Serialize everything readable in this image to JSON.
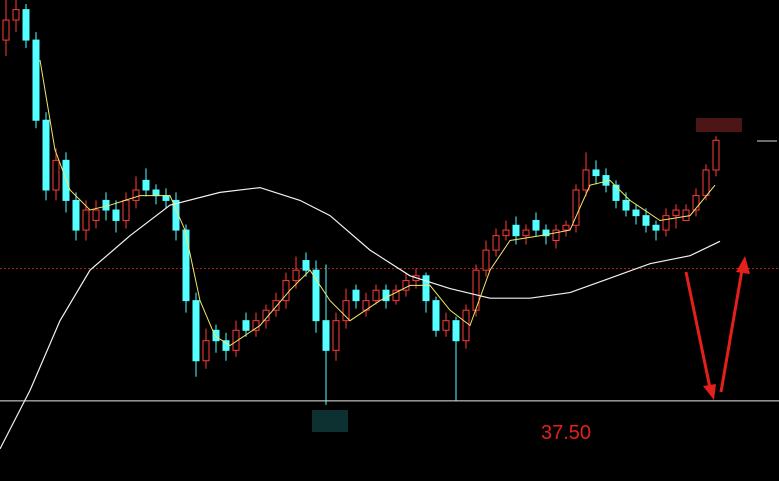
{
  "chart_data": {
    "type": "candlestick",
    "ylim": [
      36.5,
      42.5
    ],
    "up_color": "#ff3a3a",
    "down_color": "#54ffff",
    "open": [
      42.0,
      42.25,
      42.38,
      42.0,
      41.0,
      40.13,
      40.5,
      40.0,
      39.63,
      39.75,
      40.0,
      39.88,
      39.75,
      40.0,
      40.25,
      40.13,
      40.06,
      40.0,
      39.63,
      38.75,
      38.0,
      38.38,
      38.25,
      38.13,
      38.5,
      38.38,
      38.5,
      38.63,
      38.75,
      39.0,
      39.25,
      39.13,
      38.5,
      38.13,
      38.5,
      38.88,
      38.63,
      38.75,
      38.88,
      38.75,
      38.88,
      39.0,
      39.06,
      38.75,
      38.38,
      38.5,
      38.25,
      38.63,
      39.13,
      39.38,
      39.56,
      39.69,
      39.56,
      39.75,
      39.63,
      39.5,
      39.63,
      39.69,
      40.13,
      40.38,
      40.31,
      40.19,
      40.0,
      39.88,
      39.81,
      39.69,
      39.63,
      39.81,
      39.75,
      39.88,
      40.06,
      40.38
    ],
    "close": [
      42.25,
      42.38,
      42.0,
      41.0,
      40.13,
      40.5,
      40.0,
      39.63,
      39.88,
      39.88,
      39.88,
      39.75,
      40.0,
      40.13,
      40.13,
      40.06,
      40.0,
      39.63,
      38.75,
      38.0,
      38.25,
      38.25,
      38.13,
      38.38,
      38.38,
      38.5,
      38.63,
      38.75,
      39.0,
      39.13,
      39.13,
      38.5,
      38.13,
      38.5,
      38.75,
      38.75,
      38.75,
      38.88,
      38.75,
      38.88,
      39.0,
      39.06,
      38.75,
      38.38,
      38.5,
      38.25,
      38.63,
      39.13,
      39.38,
      39.56,
      39.63,
      39.56,
      39.63,
      39.63,
      39.56,
      39.63,
      39.69,
      40.13,
      40.38,
      40.31,
      40.19,
      40.0,
      39.88,
      39.81,
      39.69,
      39.63,
      39.81,
      39.88,
      39.88,
      40.06,
      40.38,
      40.75
    ],
    "high": [
      42.5,
      42.5,
      42.45,
      42.1,
      41.1,
      40.65,
      40.6,
      40.1,
      40.0,
      40.0,
      40.1,
      40.0,
      40.1,
      40.3,
      40.4,
      40.2,
      40.15,
      40.1,
      39.7,
      38.85,
      38.4,
      38.45,
      38.35,
      38.5,
      38.6,
      38.6,
      38.7,
      38.85,
      39.1,
      39.3,
      39.35,
      39.25,
      39.2,
      38.6,
      38.9,
      38.95,
      38.85,
      38.95,
      38.95,
      38.95,
      39.1,
      39.15,
      39.1,
      38.8,
      38.6,
      38.55,
      38.7,
      39.2,
      39.5,
      39.65,
      39.75,
      39.8,
      39.7,
      39.85,
      39.7,
      39.7,
      39.75,
      40.2,
      40.6,
      40.5,
      40.4,
      40.25,
      40.1,
      39.95,
      39.9,
      39.75,
      39.9,
      39.95,
      39.95,
      40.15,
      40.45,
      40.8
    ],
    "low": [
      41.8,
      42.1,
      41.9,
      40.9,
      40.0,
      40.0,
      39.85,
      39.5,
      39.5,
      39.65,
      39.75,
      39.6,
      39.65,
      39.9,
      40.05,
      39.95,
      39.9,
      39.5,
      38.6,
      37.8,
      37.9,
      38.1,
      38.0,
      38.05,
      38.3,
      38.3,
      38.4,
      38.55,
      38.65,
      38.9,
      39.05,
      38.35,
      37.45,
      38.0,
      38.4,
      38.65,
      38.55,
      38.7,
      38.65,
      38.7,
      38.8,
      38.9,
      38.6,
      38.3,
      38.3,
      37.5,
      38.15,
      38.55,
      39.05,
      39.3,
      39.5,
      39.45,
      39.45,
      39.55,
      39.45,
      39.4,
      39.55,
      39.6,
      40.05,
      40.2,
      40.1,
      39.9,
      39.8,
      39.7,
      39.6,
      39.5,
      39.55,
      39.65,
      39.8,
      39.8,
      40.0,
      40.3
    ],
    "short_ma": {
      "color": "#f5e66a",
      "x": [
        3.4,
        4.9,
        6.4,
        8.4,
        10.4,
        13.4,
        16.4,
        17.9,
        19.4,
        20.9,
        22.4,
        25.4,
        28.4,
        30.4,
        32.4,
        34.4,
        37.4,
        40.4,
        42.4,
        44.4,
        46.4,
        48.4,
        50.4,
        53.4,
        56.4,
        58.4,
        60.4,
        62.4,
        65.4,
        68.4,
        70.9
      ],
      "values": [
        41.75,
        40.63,
        40.13,
        39.88,
        39.94,
        40.06,
        40.06,
        39.63,
        38.75,
        38.31,
        38.19,
        38.44,
        38.88,
        39.13,
        38.75,
        38.5,
        38.75,
        38.94,
        38.94,
        38.63,
        38.44,
        39.13,
        39.5,
        39.56,
        39.63,
        40.19,
        40.25,
        40.0,
        39.75,
        39.81,
        40.19
      ]
    },
    "long_ma": {
      "color": "#f2f2f2",
      "x": [
        -0.6,
        2.4,
        5.4,
        8.4,
        12.4,
        16.4,
        21.4,
        25.4,
        29.4,
        32.4,
        36.4,
        40.4,
        44.4,
        48.4,
        52.4,
        56.4,
        60.4,
        64.4,
        68.4,
        71.4
      ],
      "values": [
        36.9,
        37.63,
        38.5,
        39.13,
        39.56,
        39.94,
        40.1,
        40.16,
        40.0,
        39.81,
        39.38,
        39.06,
        38.9,
        38.78,
        38.78,
        38.85,
        39.03,
        39.21,
        39.31,
        39.49
      ]
    },
    "reference_level": 39.15,
    "support_level": {
      "value": 37.5,
      "label": "37.50"
    }
  }
}
